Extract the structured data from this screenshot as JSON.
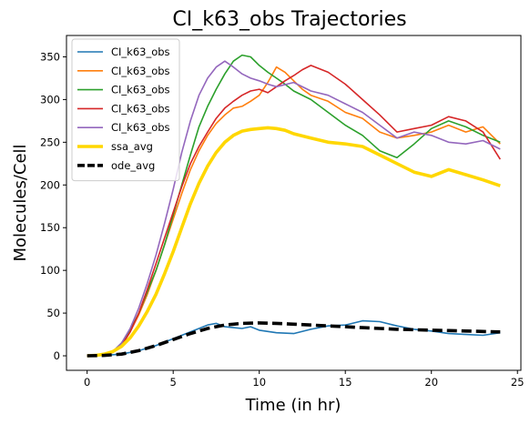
{
  "chart_data": {
    "type": "line",
    "title": "CI_k63_obs Trajectories",
    "xlabel": "Time (in hr)",
    "ylabel": "Molecules/Cell",
    "xlim": [
      -1.2,
      25.2
    ],
    "ylim": [
      -17,
      375
    ],
    "xticks": [
      0,
      5,
      10,
      15,
      20,
      25
    ],
    "yticks": [
      0,
      50,
      100,
      150,
      200,
      250,
      300,
      350
    ],
    "grid": false,
    "legend_position": "top-left",
    "series": [
      {
        "name": "CI_k63_obs",
        "color": "#1f77b4",
        "x": [
          0,
          1,
          2,
          3,
          4,
          5,
          6,
          7,
          7.5,
          8,
          8.5,
          9,
          9.5,
          10,
          11,
          12,
          13,
          14,
          15,
          16,
          17,
          18,
          19,
          20,
          21,
          22,
          23,
          24
        ],
        "y": [
          0,
          0.5,
          2,
          6,
          12,
          20,
          28,
          36,
          38,
          34,
          33,
          32,
          34,
          30,
          27,
          26,
          31,
          35,
          36,
          41,
          40,
          35,
          31,
          29,
          26,
          25,
          24,
          27
        ]
      },
      {
        "name": "CI_k63_obs",
        "color": "#ff7f0e",
        "x": [
          0,
          1,
          1.5,
          2,
          2.5,
          3,
          3.5,
          4,
          4.5,
          5,
          5.5,
          6,
          6.5,
          7,
          7.5,
          8,
          8.5,
          9,
          9.5,
          10,
          10.5,
          11,
          11.5,
          12,
          12.5,
          13,
          14,
          15,
          16,
          17,
          18,
          19,
          20,
          21,
          22,
          23,
          24
        ],
        "y": [
          0,
          1,
          4,
          12,
          28,
          48,
          72,
          100,
          130,
          160,
          190,
          218,
          240,
          258,
          272,
          282,
          290,
          292,
          298,
          305,
          320,
          338,
          332,
          322,
          312,
          305,
          298,
          285,
          278,
          262,
          255,
          258,
          262,
          270,
          262,
          268,
          248
        ]
      },
      {
        "name": "CI_k63_obs",
        "color": "#2ca02c",
        "x": [
          0,
          1,
          1.5,
          2,
          2.5,
          3,
          3.5,
          4,
          4.5,
          5,
          5.5,
          6,
          6.5,
          7,
          7.5,
          8,
          8.5,
          9,
          9.5,
          10,
          10.5,
          11,
          11.5,
          12,
          13,
          14,
          15,
          16,
          17,
          18,
          19,
          20,
          21,
          22,
          23,
          24
        ],
        "y": [
          0,
          1,
          5,
          15,
          30,
          50,
          75,
          100,
          130,
          165,
          200,
          235,
          268,
          292,
          312,
          330,
          345,
          352,
          350,
          340,
          332,
          325,
          318,
          310,
          300,
          285,
          270,
          258,
          240,
          232,
          248,
          266,
          275,
          268,
          258,
          250
        ]
      },
      {
        "name": "CI_k63_obs",
        "color": "#d62728",
        "x": [
          0,
          1,
          1.5,
          2,
          2.5,
          3,
          3.5,
          4,
          4.5,
          5,
          5.5,
          6,
          6.5,
          7,
          7.5,
          8,
          8.5,
          9,
          9.5,
          10,
          10.5,
          11,
          11.5,
          12,
          12.5,
          13,
          14,
          15,
          16,
          17,
          18,
          19,
          20,
          21,
          22,
          23,
          24
        ],
        "y": [
          0,
          1,
          4,
          12,
          28,
          50,
          78,
          108,
          138,
          168,
          198,
          225,
          245,
          262,
          278,
          290,
          298,
          305,
          310,
          312,
          308,
          315,
          322,
          328,
          335,
          340,
          332,
          318,
          300,
          282,
          262,
          266,
          270,
          280,
          275,
          262,
          230
        ]
      },
      {
        "name": "CI_k63_obs",
        "color": "#9467bd",
        "x": [
          0,
          1,
          1.5,
          2,
          2.5,
          3,
          3.5,
          4,
          4.5,
          5,
          5.5,
          6,
          6.5,
          7,
          7.5,
          8,
          8.5,
          9,
          9.5,
          10,
          10.5,
          11,
          12,
          13,
          14,
          15,
          16,
          17,
          18,
          19,
          20,
          21,
          22,
          23,
          24
        ],
        "y": [
          0,
          1,
          5,
          15,
          32,
          56,
          85,
          118,
          155,
          195,
          238,
          275,
          305,
          325,
          338,
          345,
          338,
          330,
          325,
          322,
          318,
          315,
          320,
          310,
          305,
          295,
          285,
          270,
          255,
          262,
          258,
          250,
          248,
          252,
          242
        ]
      },
      {
        "name": "ssa_avg",
        "color": "#ffd700",
        "dash": false,
        "width": 3.6,
        "x": [
          0,
          0.5,
          1,
          1.5,
          2,
          2.5,
          3,
          3.5,
          4,
          4.5,
          5,
          5.5,
          6,
          6.5,
          7,
          7.5,
          8,
          8.5,
          9,
          9.5,
          10,
          10.5,
          11,
          11.5,
          12,
          13,
          14,
          15,
          16,
          17,
          18,
          19,
          20,
          21,
          22,
          23,
          24
        ],
        "y": [
          0,
          0.5,
          2,
          5,
          11,
          21,
          35,
          52,
          72,
          96,
          122,
          150,
          178,
          202,
          222,
          238,
          250,
          258,
          263,
          265,
          266,
          267,
          266,
          264,
          260,
          255,
          250,
          248,
          245,
          235,
          225,
          215,
          210,
          218,
          212,
          206,
          199
        ]
      },
      {
        "name": "ode_avg",
        "color": "#000000",
        "dash": true,
        "width": 3.6,
        "x": [
          0,
          1,
          2,
          3,
          4,
          5,
          6,
          7,
          8,
          9,
          10,
          11,
          12,
          13,
          14,
          15,
          16,
          17,
          18,
          19,
          20,
          21,
          22,
          23,
          24
        ],
        "y": [
          0,
          0.5,
          2,
          6,
          12,
          19,
          26,
          32,
          36,
          38,
          38.5,
          38,
          37,
          36,
          35,
          34,
          33,
          32,
          31,
          30.5,
          30,
          29.5,
          29,
          28.5,
          28
        ]
      }
    ]
  }
}
